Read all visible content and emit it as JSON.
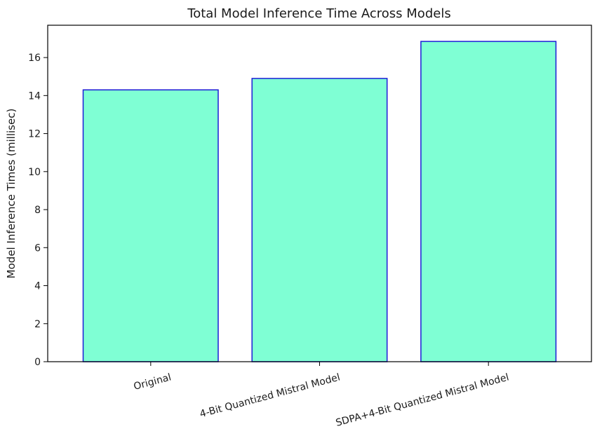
{
  "chart_data": {
    "type": "bar",
    "title": "Total Model Inference Time Across Models",
    "xlabel": "",
    "ylabel": "Model Inference Times (millisec)",
    "categories": [
      "Original",
      "4-Bit Quantized Mistral Model",
      "SDPA+4-Bit Quantized Mistral Model"
    ],
    "values": [
      14.3,
      14.9,
      16.85
    ],
    "ylim": [
      0,
      17.7
    ],
    "yticks": [
      0,
      2,
      4,
      6,
      8,
      10,
      12,
      14,
      16
    ],
    "grid": false,
    "bar_fill_color": "#7fffd4",
    "bar_edge_color": "#1c1cd6"
  }
}
